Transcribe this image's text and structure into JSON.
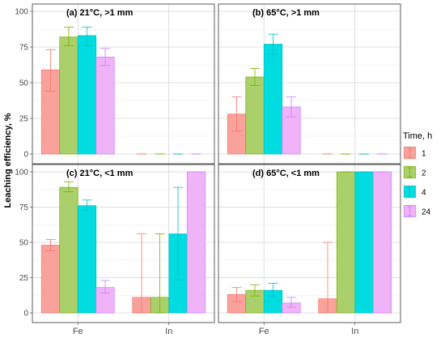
{
  "chart_data": {
    "type": "bar",
    "ylabel": "Leaching efficiency, %",
    "xlabel": "",
    "categories": [
      "Fe",
      "In"
    ],
    "ylim": [
      0,
      100
    ],
    "yticks": [
      0,
      25,
      50,
      75,
      100
    ],
    "grid": true,
    "legend": {
      "title": "Time, h",
      "position": "right",
      "entries": [
        "1",
        "2",
        "4",
        "24"
      ],
      "colors": [
        "#F8A29B",
        "#A9D06A",
        "#00DCE0",
        "#F1B3F7"
      ],
      "edge_colors": [
        "#F8766D",
        "#7CAE00",
        "#00BFC4",
        "#C77CFF"
      ]
    },
    "panels": [
      {
        "title": "(a)   21°C, >1 mm",
        "series": [
          {
            "name": "1",
            "values": [
              59,
              0
            ],
            "error_low": [
              44,
              0
            ],
            "error_high": [
              73,
              0
            ]
          },
          {
            "name": "2",
            "values": [
              82,
              0
            ],
            "error_low": [
              76,
              0
            ],
            "error_high": [
              89,
              0
            ]
          },
          {
            "name": "4",
            "values": [
              83,
              0
            ],
            "error_low": [
              76,
              0
            ],
            "error_high": [
              89,
              0
            ]
          },
          {
            "name": "24",
            "values": [
              68,
              0
            ],
            "error_low": [
              62,
              0
            ],
            "error_high": [
              74,
              0
            ]
          }
        ]
      },
      {
        "title": "(b)   65°C, >1 mm",
        "series": [
          {
            "name": "1",
            "values": [
              28,
              0
            ],
            "error_low": [
              16,
              0
            ],
            "error_high": [
              40,
              0
            ]
          },
          {
            "name": "2",
            "values": [
              54,
              0
            ],
            "error_low": [
              48,
              0
            ],
            "error_high": [
              60,
              0
            ]
          },
          {
            "name": "4",
            "values": [
              77,
              0
            ],
            "error_low": [
              70,
              0
            ],
            "error_high": [
              84,
              0
            ]
          },
          {
            "name": "24",
            "values": [
              33,
              0
            ],
            "error_low": [
              26,
              0
            ],
            "error_high": [
              40,
              0
            ]
          }
        ]
      },
      {
        "title": "(c)   21°C, <1 mm",
        "series": [
          {
            "name": "1",
            "values": [
              48,
              11
            ],
            "error_low": [
              44,
              0
            ],
            "error_high": [
              52,
              56
            ]
          },
          {
            "name": "2",
            "values": [
              89,
              11
            ],
            "error_low": [
              86,
              0
            ],
            "error_high": [
              93,
              56
            ]
          },
          {
            "name": "4",
            "values": [
              76,
              56
            ],
            "error_low": [
              73,
              23
            ],
            "error_high": [
              80,
              89
            ]
          },
          {
            "name": "24",
            "values": [
              18,
              100
            ],
            "error_low": [
              14,
              100
            ],
            "error_high": [
              23,
              100
            ]
          }
        ]
      },
      {
        "title": "(d)   65°C, <1 mm",
        "series": [
          {
            "name": "1",
            "values": [
              13,
              10
            ],
            "error_low": [
              8,
              0
            ],
            "error_high": [
              18,
              50
            ]
          },
          {
            "name": "2",
            "values": [
              16,
              100
            ],
            "error_low": [
              12,
              100
            ],
            "error_high": [
              20,
              100
            ]
          },
          {
            "name": "4",
            "values": [
              16,
              100
            ],
            "error_low": [
              12,
              100
            ],
            "error_high": [
              21,
              100
            ]
          },
          {
            "name": "24",
            "values": [
              7,
              100
            ],
            "error_low": [
              4,
              100
            ],
            "error_high": [
              11,
              100
            ]
          }
        ]
      }
    ]
  }
}
